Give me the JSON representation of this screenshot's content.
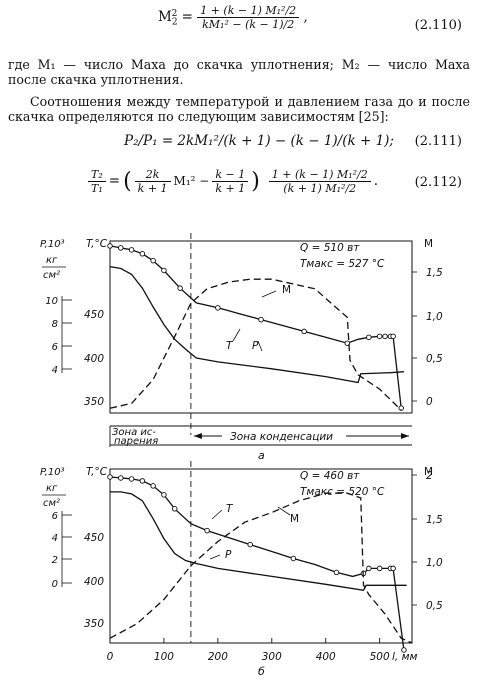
{
  "equations": {
    "eq110": {
      "lhs": "M",
      "lhs_sub": "2",
      "lhs_sup": "2",
      "num": "1 + (k − 1) M₁²/2",
      "den": "kM₁² − (k − 1)/2",
      "tail": ",",
      "number": "(2.110)"
    },
    "eq111": {
      "text": "P₂/P₁ = 2kM₁²/(k + 1) − (k − 1)/(k + 1);",
      "number": "(2.111)"
    },
    "eq112": {
      "lhs_num": "T₂",
      "lhs_den": "T₁",
      "eq": "=",
      "open": "(",
      "f1_num": "2k",
      "f1_den": "k + 1",
      "m1": "M₁² −",
      "f2_num": "k − 1",
      "f2_den": "k + 1",
      "close": ")",
      "f3_num": "1 + (k − 1) M₁²/2",
      "f3_den": "(k + 1) M₁²/2",
      "tail": ".",
      "number": "(2.112)"
    }
  },
  "text": {
    "para1": "где M₁ — число Маха до скачка уплотнения; M₂ — число Маха после скачка уплотнения.",
    "para2": "Соотношения между температурой и давлением газа до и после скачка определяются по следующим зависимостям [25]:"
  },
  "figure": {
    "panel_a": {
      "ylabel_p": "P,10³",
      "ylabel_p_unit_num": "кг",
      "ylabel_p_unit_den": "см²",
      "ylabel_t": "T,°C",
      "ylabel_m": "M",
      "annot_q": "Q = 510 вт",
      "annot_t": "Tмакс = 527 °C",
      "p_ticks": [
        "10",
        "8",
        "6",
        "4"
      ],
      "t_ticks": [
        "450",
        "400",
        "350"
      ],
      "m_ticks": [
        "1,5",
        "1,0",
        "0,5",
        "0"
      ],
      "curve_labels": {
        "M": "M",
        "T": "T",
        "P": "P"
      },
      "zone_evap_1": "Зона ис-",
      "zone_evap_2": "парения",
      "zone_cond": "Зона конденсации",
      "caption": "а"
    },
    "panel_b": {
      "ylabel_p": "P,10³",
      "ylabel_p_unit_num": "кг",
      "ylabel_p_unit_den": "см²",
      "ylabel_t": "T,°C",
      "ylabel_m": "M",
      "annot_q": "Q = 460 вт",
      "annot_t": "Tмакс = 520 °C",
      "p_ticks": [
        "6",
        "4",
        "2",
        "0"
      ],
      "t_ticks": [
        "450",
        "400",
        "350"
      ],
      "m_ticks": [
        "2",
        "1,5",
        "1,0",
        "0,5"
      ],
      "x_ticks": [
        "0",
        "100",
        "200",
        "300",
        "400",
        "500"
      ],
      "x_unit": "l, мм",
      "curve_labels": {
        "M": "M",
        "T": "T",
        "P": "P"
      },
      "caption": "б"
    }
  },
  "chart_data": [
    {
      "type": "line",
      "title": "",
      "xlabel": "l, мм",
      "ylabel": "T, °C",
      "y2label": "M",
      "annotations": [
        "Q = 510 вт",
        "Tмакс = 527 °C"
      ],
      "xlim": [
        0,
        560
      ],
      "ylim_T": [
        335,
        510
      ],
      "ylim_M": [
        -0.05,
        1.75
      ],
      "series": [
        {
          "name": "T",
          "marker": "circle",
          "axis": "T",
          "x": [
            0,
            20,
            40,
            60,
            80,
            100,
            130,
            160,
            200,
            240,
            280,
            320,
            360,
            400,
            440,
            460,
            480,
            500,
            510,
            520,
            525,
            540
          ],
          "y": [
            505,
            503,
            501,
            497,
            490,
            480,
            462,
            447,
            442,
            436,
            430,
            424,
            418,
            412,
            406,
            410,
            412,
            413,
            413,
            413,
            413,
            340
          ]
        },
        {
          "name": "P",
          "axis": "T",
          "x": [
            0,
            20,
            40,
            60,
            80,
            100,
            120,
            140,
            160,
            200,
            300,
            400,
            460,
            465,
            520,
            545
          ],
          "y": [
            484,
            482,
            476,
            462,
            443,
            425,
            410,
            400,
            391,
            387,
            380,
            372,
            366,
            375,
            376,
            377
          ]
        },
        {
          "name": "M",
          "axis": "M",
          "style": "dashed",
          "x": [
            0,
            40,
            80,
            120,
            150,
            180,
            220,
            260,
            300,
            340,
            380,
            420,
            440,
            445,
            460,
            500,
            540
          ],
          "y": [
            0.0,
            0.05,
            0.3,
            0.75,
            1.1,
            1.25,
            1.32,
            1.35,
            1.35,
            1.3,
            1.25,
            1.05,
            0.95,
            0.5,
            0.35,
            0.2,
            -0.02
          ]
        }
      ]
    },
    {
      "type": "line",
      "title": "",
      "xlabel": "l, мм",
      "ylabel": "T, °C",
      "y2label": "M",
      "annotations": [
        "Q = 460 вт",
        "Tмакс = 520 °C"
      ],
      "xlim": [
        0,
        560
      ],
      "ylim_T": [
        335,
        510
      ],
      "ylim_M": [
        0.25,
        2.05
      ],
      "series": [
        {
          "name": "T",
          "marker": "circle",
          "axis": "T",
          "x": [
            0,
            20,
            40,
            60,
            80,
            100,
            120,
            150,
            180,
            220,
            260,
            300,
            340,
            380,
            420,
            450,
            470,
            480,
            500,
            520,
            525,
            545
          ],
          "y": [
            502,
            501,
            500,
            498,
            493,
            484,
            470,
            455,
            448,
            441,
            434,
            427,
            420,
            414,
            406,
            402,
            405,
            410,
            410,
            410,
            410,
            328
          ]
        },
        {
          "name": "P",
          "axis": "T",
          "x": [
            0,
            20,
            40,
            60,
            80,
            100,
            120,
            140,
            160,
            200,
            300,
            400,
            470,
            475,
            520,
            550
          ],
          "y": [
            487,
            487,
            485,
            478,
            460,
            440,
            425,
            418,
            415,
            410,
            402,
            394,
            388,
            393,
            393,
            393
          ]
        },
        {
          "name": "M",
          "axis": "M",
          "style": "dashed",
          "x": [
            0,
            50,
            100,
            150,
            200,
            250,
            300,
            350,
            400,
            440,
            465,
            470,
            480,
            510,
            540,
            560
          ],
          "y": [
            0.3,
            0.45,
            0.7,
            1.05,
            1.3,
            1.5,
            1.6,
            1.72,
            1.8,
            1.8,
            1.75,
            0.85,
            0.75,
            0.55,
            0.3,
            0.25
          ]
        }
      ]
    }
  ]
}
